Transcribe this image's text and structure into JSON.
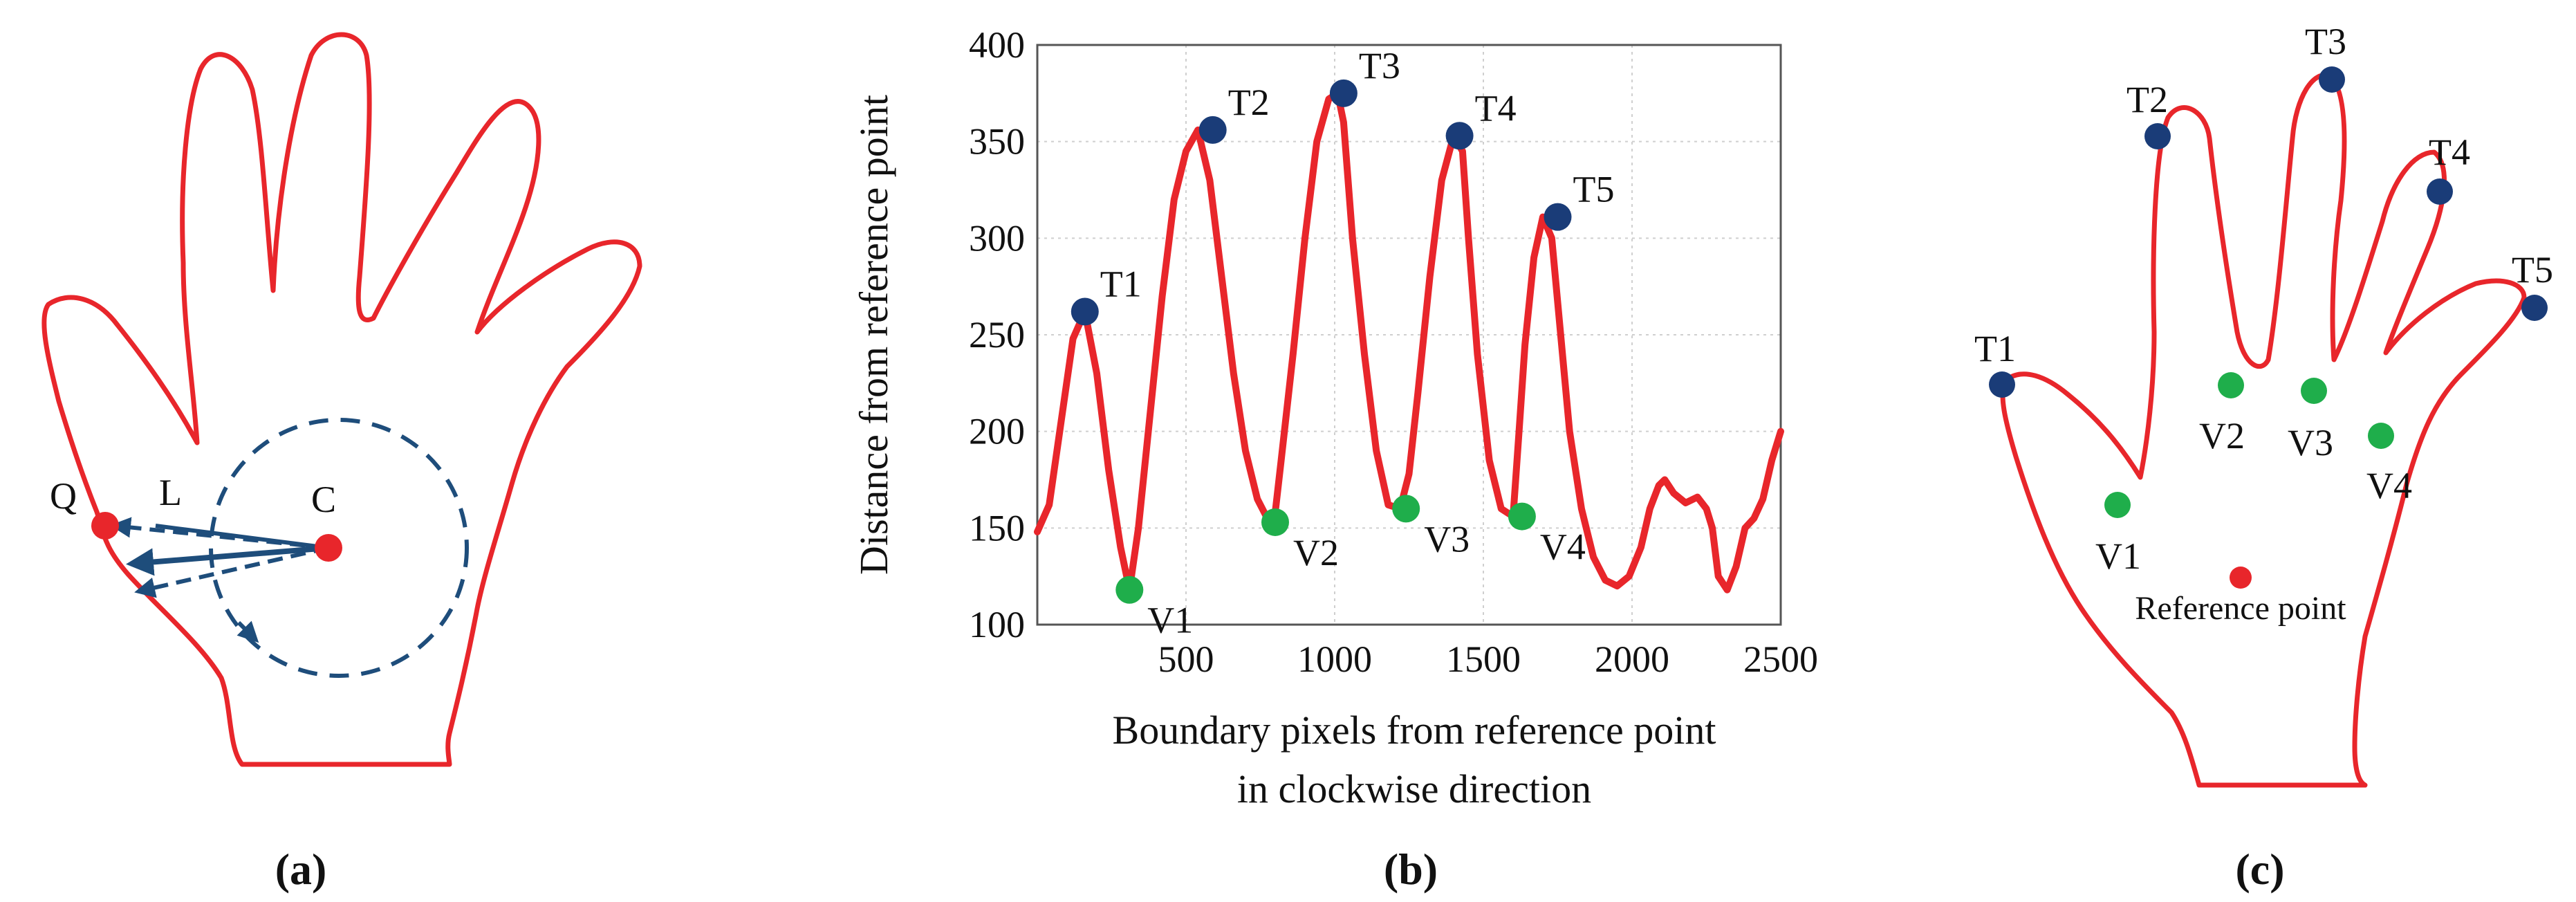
{
  "colors": {
    "curve": "#e8262b",
    "tip": "#1a3c78",
    "valley": "#1fae4b",
    "reference": "#e8262b",
    "arrow": "#1e4d7b"
  },
  "panel_a": {
    "caption": "(a)",
    "labels": {
      "q": "Q",
      "l": "L",
      "c": "C"
    }
  },
  "panel_b": {
    "caption": "(b)",
    "chart_data": {
      "type": "line",
      "xlabel": [
        "Boundary pixels from reference point",
        "in clockwise direction"
      ],
      "ylabel": "Distance from reference point",
      "xlim": [
        0,
        2500
      ],
      "ylim": [
        100,
        400
      ],
      "xticks": [
        "500",
        "1000",
        "1500",
        "2000",
        "2500"
      ],
      "yticks": [
        "100",
        "150",
        "200",
        "250",
        "300",
        "350",
        "400"
      ],
      "grid": true,
      "series": [
        {
          "name": "distance",
          "x": [
            0,
            40,
            80,
            120,
            160,
            200,
            240,
            280,
            310,
            340,
            380,
            420,
            460,
            500,
            540,
            580,
            620,
            660,
            700,
            740,
            780,
            800,
            820,
            860,
            900,
            940,
            980,
            1010,
            1030,
            1060,
            1100,
            1140,
            1180,
            1220,
            1250,
            1280,
            1320,
            1360,
            1400,
            1430,
            1450,
            1480,
            1520,
            1560,
            1600,
            1620,
            1640,
            1670,
            1700,
            1730,
            1760,
            1790,
            1830,
            1870,
            1910,
            1950,
            1990,
            2030,
            2060,
            2090,
            2110,
            2140,
            2180,
            2220,
            2250,
            2270,
            2290,
            2320,
            2350,
            2380,
            2410,
            2440,
            2470,
            2500
          ],
          "y": [
            148,
            162,
            205,
            248,
            262,
            230,
            180,
            140,
            118,
            150,
            210,
            270,
            320,
            345,
            356,
            330,
            280,
            230,
            190,
            165,
            153,
            158,
            185,
            240,
            300,
            350,
            372,
            375,
            360,
            300,
            240,
            190,
            162,
            160,
            178,
            220,
            280,
            330,
            353,
            345,
            300,
            240,
            185,
            160,
            156,
            200,
            245,
            290,
            311,
            300,
            250,
            200,
            160,
            135,
            123,
            120,
            125,
            140,
            160,
            172,
            175,
            168,
            163,
            166,
            160,
            150,
            125,
            118,
            130,
            150,
            155,
            165,
            185,
            200
          ]
        }
      ],
      "tips": [
        {
          "label": "T1",
          "x": 160,
          "y": 262
        },
        {
          "label": "T2",
          "x": 590,
          "y": 356
        },
        {
          "label": "T3",
          "x": 1030,
          "y": 375
        },
        {
          "label": "T4",
          "x": 1420,
          "y": 353
        },
        {
          "label": "T5",
          "x": 1750,
          "y": 311
        }
      ],
      "valleys": [
        {
          "label": "V1",
          "x": 310,
          "y": 118
        },
        {
          "label": "V2",
          "x": 800,
          "y": 153
        },
        {
          "label": "V3",
          "x": 1240,
          "y": 160
        },
        {
          "label": "V4",
          "x": 1630,
          "y": 156
        }
      ]
    }
  },
  "panel_c": {
    "caption": "(c)",
    "reference_label": "Reference point",
    "tips": [
      "T1",
      "T2",
      "T3",
      "T4",
      "T5"
    ],
    "valleys": [
      "V1",
      "V2",
      "V3",
      "V4"
    ]
  }
}
